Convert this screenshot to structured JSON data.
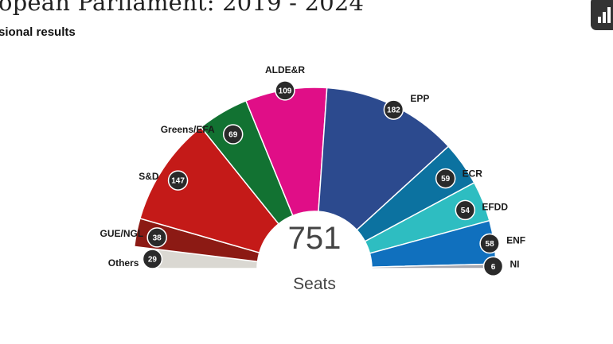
{
  "header": {
    "title": "opean Parliament: 2019 - 2024",
    "subtitle": "sional results"
  },
  "toolbar": {
    "chart_icon": "bar-chart-icon"
  },
  "chart_data": {
    "type": "semicircle-parliament",
    "total": "751",
    "total_label": "Seats",
    "parties": [
      {
        "name": "Others",
        "seats": 29,
        "color": "#dad8d2"
      },
      {
        "name": "GUE/NGL",
        "seats": 38,
        "color": "#8c1a14"
      },
      {
        "name": "S&D",
        "seats": 147,
        "color": "#c41a18"
      },
      {
        "name": "Greens/EFA",
        "seats": 69,
        "color": "#127232"
      },
      {
        "name": "ALDE&R",
        "seats": 109,
        "color": "#e00e87"
      },
      {
        "name": "EPP",
        "seats": 182,
        "color": "#2c4a8e"
      },
      {
        "name": "ECR",
        "seats": 59,
        "color": "#0c72a0"
      },
      {
        "name": "EFDD",
        "seats": 54,
        "color": "#2ebdc1"
      },
      {
        "name": "ENF",
        "seats": 58,
        "color": "#1070be"
      },
      {
        "name": "NI",
        "seats": 6,
        "color": "#a6a8b0"
      }
    ]
  }
}
